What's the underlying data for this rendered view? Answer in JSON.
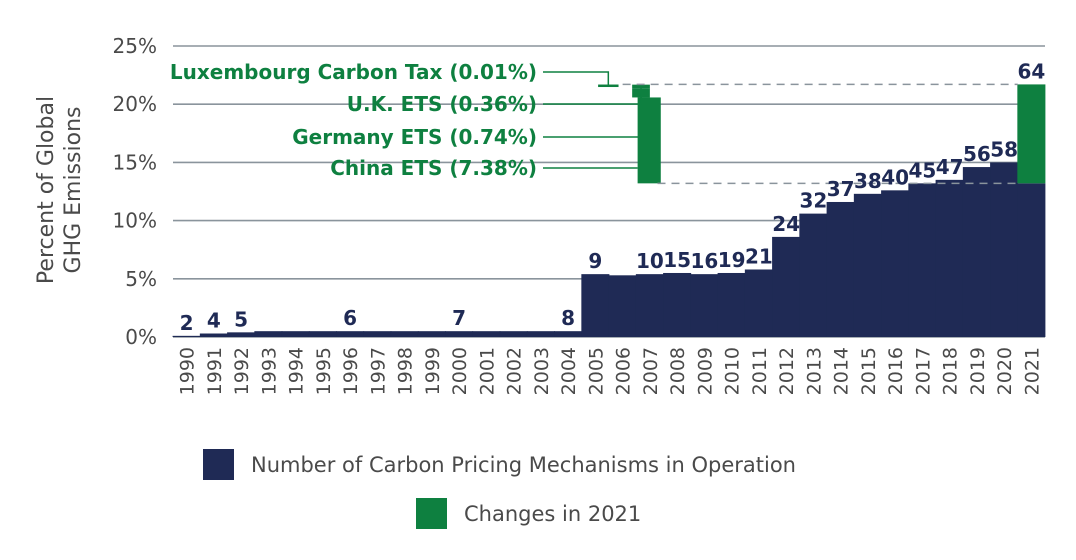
{
  "chart_data": {
    "type": "bar",
    "ylabel_lines": [
      "Percent of Global",
      "GHG Emissions"
    ],
    "ylim": [
      0,
      25
    ],
    "y_ticks": [
      0,
      5,
      10,
      15,
      20,
      25
    ],
    "y_tick_labels": [
      "0%",
      "5%",
      "10%",
      "15%",
      "20%",
      "25%"
    ],
    "categories": [
      "1990",
      "1991",
      "1992",
      "1993",
      "1994",
      "1995",
      "1996",
      "1997",
      "1998",
      "1999",
      "2000",
      "2001",
      "2002",
      "2003",
      "2004",
      "2005",
      "2006",
      "2007",
      "2008",
      "2009",
      "2010",
      "2011",
      "2012",
      "2013",
      "2014",
      "2015",
      "2016",
      "2017",
      "2018",
      "2019",
      "2020",
      "2021"
    ],
    "series": [
      {
        "name": "Number of Carbon Pricing Mechanisms in Operation",
        "color": "#1f2a55",
        "values": [
          0.1,
          0.3,
          0.4,
          0.5,
          0.5,
          0.5,
          0.5,
          0.5,
          0.5,
          0.5,
          0.5,
          0.5,
          0.5,
          0.5,
          0.5,
          5.4,
          5.3,
          5.4,
          5.5,
          5.4,
          5.5,
          5.8,
          8.6,
          10.6,
          11.6,
          12.3,
          12.6,
          13.2,
          13.5,
          14.6,
          15.0,
          13.2
        ]
      }
    ],
    "bar_labels": [
      {
        "category": "1990",
        "text": "2"
      },
      {
        "category": "1991",
        "text": "4"
      },
      {
        "category": "1992",
        "text": "5"
      },
      {
        "category": "1996",
        "text": "6"
      },
      {
        "category": "2000",
        "text": "7"
      },
      {
        "category": "2004",
        "text": "8"
      },
      {
        "category": "2005",
        "text": "9"
      },
      {
        "category": "2007",
        "text": "10"
      },
      {
        "category": "2008",
        "text": "15"
      },
      {
        "category": "2009",
        "text": "16"
      },
      {
        "category": "2010",
        "text": "19"
      },
      {
        "category": "2011",
        "text": "21"
      },
      {
        "category": "2012",
        "text": "24"
      },
      {
        "category": "2013",
        "text": "32"
      },
      {
        "category": "2014",
        "text": "37"
      },
      {
        "category": "2015",
        "text": "38"
      },
      {
        "category": "2016",
        "text": "40"
      },
      {
        "category": "2017",
        "text": "45"
      },
      {
        "category": "2018",
        "text": "47"
      },
      {
        "category": "2019",
        "text": "56"
      },
      {
        "category": "2020",
        "text": "58"
      },
      {
        "category": "2021",
        "text": "64",
        "color": "#0e8040"
      }
    ],
    "changes_2021": {
      "name": "Changes in 2021",
      "color": "#0e8040",
      "base": 13.2,
      "total": 21.7,
      "items": [
        {
          "label": "China ETS (7.38%)",
          "value": 7.38
        },
        {
          "label": "Germany ETS (0.74%)",
          "value": 0.74
        },
        {
          "label": "U.K. ETS (0.36%)",
          "value": 0.36
        },
        {
          "label": "Luxembourg Carbon Tax (0.01%)",
          "value": 0.01
        }
      ]
    },
    "legend": [
      {
        "label": "Number of Carbon Pricing Mechanisms in Operation",
        "color": "#1f2a55"
      },
      {
        "label": "Changes in 2021",
        "color": "#0e8040"
      }
    ],
    "grid": true,
    "legend_position": "bottom"
  },
  "colors": {
    "navy": "#1f2a55",
    "green": "#0e8040",
    "grid": "#8a949c",
    "text": "#4a4a4a"
  }
}
